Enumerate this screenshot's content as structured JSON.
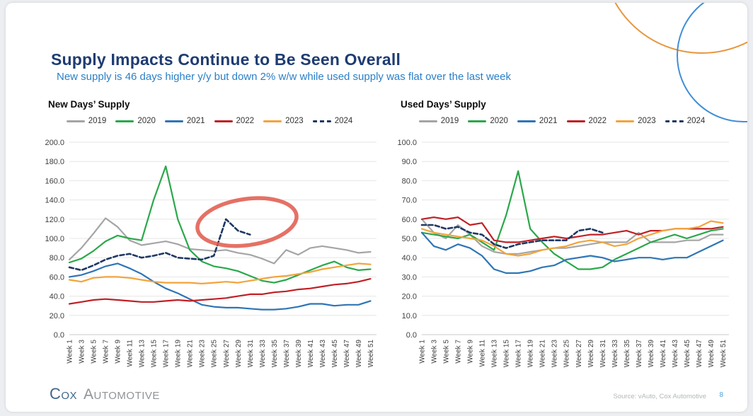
{
  "page": {
    "title": "Supply Impacts Continue to Be Seen Overall",
    "subtitle": "New supply is 46 days higher y/y but down 2% w/w while used supply was flat over the last week",
    "footer": {
      "logo_cox": "Cox",
      "logo_automotive": "Automotive",
      "source": "Source: vAuto, Cox Automotive",
      "page_number": "8"
    }
  },
  "colors": {
    "title": "#1e3c72",
    "subtitle": "#2b7fc7",
    "annotation": "#e0584a",
    "accent_circle_orange": "#e8963e",
    "accent_circle_blue": "#3f8fd6",
    "page_number": "#4a9fd8",
    "series": {
      "2019": "#a5a5a5",
      "2020": "#2aa84a",
      "2021": "#2e75b6",
      "2022": "#c02025",
      "2023": "#f2a43b",
      "2024": "#1f3864"
    }
  },
  "chart_data": [
    {
      "type": "line",
      "title": "New Days’ Supply",
      "ylabel": "",
      "ylim": [
        0,
        200
      ],
      "ytick_step": 20,
      "x_range": [
        1,
        52
      ],
      "grid": true,
      "legend_position": "top",
      "x_weeks": [
        1,
        3,
        5,
        7,
        9,
        11,
        13,
        15,
        17,
        19,
        21,
        23,
        25,
        27,
        29,
        31,
        33,
        35,
        37,
        39,
        41,
        43,
        45,
        47,
        49,
        51
      ],
      "x_labels": [
        "Week 1",
        "Week 3",
        "Week 5",
        "Week 7",
        "Week 9",
        "Week 11",
        "Week 13",
        "Week 15",
        "Week 17",
        "Week 19",
        "Week 21",
        "Week 23",
        "Week 25",
        "Week 27",
        "Week 29",
        "Week 31",
        "Week 33",
        "Week 35",
        "Week 37",
        "Week 39",
        "Week 41",
        "Week 43",
        "Week 45",
        "Week 47",
        "Week 49",
        "Week 51"
      ],
      "series": [
        {
          "name": "2019",
          "color": "#a5a5a5",
          "dash": false,
          "values": [
            78,
            90,
            105,
            121,
            112,
            98,
            93,
            95,
            97,
            94,
            89,
            88,
            87,
            88,
            85,
            83,
            79,
            74,
            88,
            83,
            90,
            92,
            90,
            88,
            85,
            86
          ]
        },
        {
          "name": "2020",
          "color": "#2aa84a",
          "dash": false,
          "values": [
            75,
            79,
            87,
            97,
            103,
            100,
            98,
            140,
            175,
            120,
            88,
            76,
            71,
            69,
            66,
            61,
            56,
            54,
            57,
            62,
            67,
            72,
            76,
            70,
            67,
            68
          ]
        },
        {
          "name": "2021",
          "color": "#2e75b6",
          "dash": false,
          "values": [
            60,
            62,
            66,
            71,
            74,
            69,
            63,
            55,
            48,
            43,
            37,
            31,
            29,
            28,
            28,
            27,
            26,
            26,
            27,
            29,
            32,
            32,
            30,
            31,
            31,
            35
          ]
        },
        {
          "name": "2022",
          "color": "#c02025",
          "dash": false,
          "values": [
            32,
            34,
            36,
            37,
            36,
            35,
            34,
            34,
            35,
            36,
            35,
            36,
            37,
            38,
            40,
            42,
            42,
            44,
            45,
            47,
            48,
            50,
            52,
            53,
            55,
            58
          ]
        },
        {
          "name": "2023",
          "color": "#f2a43b",
          "dash": false,
          "values": [
            57,
            55,
            59,
            60,
            60,
            59,
            57,
            55,
            54,
            54,
            54,
            53,
            54,
            55,
            54,
            56,
            58,
            60,
            61,
            63,
            65,
            68,
            70,
            72,
            74,
            73
          ]
        },
        {
          "name": "2024",
          "color": "#1f3864",
          "dash": true,
          "values": [
            70,
            67,
            72,
            78,
            82,
            84,
            80,
            82,
            85,
            80,
            79,
            78,
            82,
            120,
            108,
            104
          ]
        }
      ],
      "annotation": {
        "shape": "ellipse",
        "center_week": 30.5,
        "center_value": 117,
        "rx_weeks": 8.3,
        "ry_units": 24,
        "rotate_deg": -8
      }
    },
    {
      "type": "line",
      "title": "Used Days’ Supply",
      "ylabel": "",
      "ylim": [
        0,
        100
      ],
      "ytick_step": 10,
      "x_range": [
        1,
        52
      ],
      "grid": true,
      "legend_position": "top",
      "x_weeks": [
        1,
        3,
        5,
        7,
        9,
        11,
        13,
        15,
        17,
        19,
        21,
        23,
        25,
        27,
        29,
        31,
        33,
        35,
        37,
        39,
        41,
        43,
        45,
        47,
        49,
        51
      ],
      "x_labels": [
        "Week 1",
        "Week 3",
        "Week 5",
        "Week 7",
        "Week 9",
        "Week 11",
        "Week 13",
        "Week 15",
        "Week 17",
        "Week 19",
        "Week 21",
        "Week 23",
        "Week 25",
        "Week 27",
        "Week 29",
        "Week 31",
        "Week 33",
        "Week 35",
        "Week 37",
        "Week 39",
        "Week 41",
        "Week 43",
        "Week 45",
        "Week 47",
        "Week 49",
        "Week 51"
      ],
      "series": [
        {
          "name": "2019",
          "color": "#a5a5a5",
          "dash": false,
          "values": [
            60,
            53,
            50,
            57,
            52,
            46,
            43,
            42,
            42,
            43,
            44,
            45,
            45,
            46,
            47,
            48,
            48,
            48,
            53,
            48,
            48,
            48,
            49,
            49,
            52,
            52
          ]
        },
        {
          "name": "2020",
          "color": "#2aa84a",
          "dash": false,
          "values": [
            53,
            52,
            51,
            50,
            52,
            48,
            44,
            62,
            85,
            55,
            48,
            42,
            38,
            34,
            34,
            35,
            39,
            42,
            45,
            48,
            50,
            52,
            50,
            52,
            54,
            55
          ]
        },
        {
          "name": "2021",
          "color": "#2e75b6",
          "dash": false,
          "values": [
            53,
            46,
            44,
            47,
            45,
            41,
            34,
            32,
            32,
            33,
            35,
            36,
            39,
            40,
            41,
            40,
            38,
            39,
            40,
            40,
            39,
            40,
            40,
            43,
            46,
            49
          ]
        },
        {
          "name": "2022",
          "color": "#c02025",
          "dash": false,
          "values": [
            60,
            61,
            60,
            61,
            57,
            58,
            49,
            48,
            48,
            49,
            50,
            51,
            50,
            51,
            52,
            52,
            53,
            54,
            52,
            54,
            54,
            55,
            55,
            55,
            55,
            56
          ]
        },
        {
          "name": "2023",
          "color": "#f2a43b",
          "dash": false,
          "values": [
            55,
            53,
            52,
            51,
            50,
            49,
            46,
            42,
            41,
            42,
            44,
            45,
            46,
            48,
            49,
            48,
            46,
            47,
            50,
            52,
            54,
            55,
            55,
            56,
            59,
            58
          ]
        },
        {
          "name": "2024",
          "color": "#1f3864",
          "dash": true,
          "values": [
            57,
            57,
            55,
            56,
            53,
            52,
            47,
            45,
            47,
            48,
            49,
            49,
            49,
            54,
            55,
            53
          ]
        }
      ]
    }
  ]
}
